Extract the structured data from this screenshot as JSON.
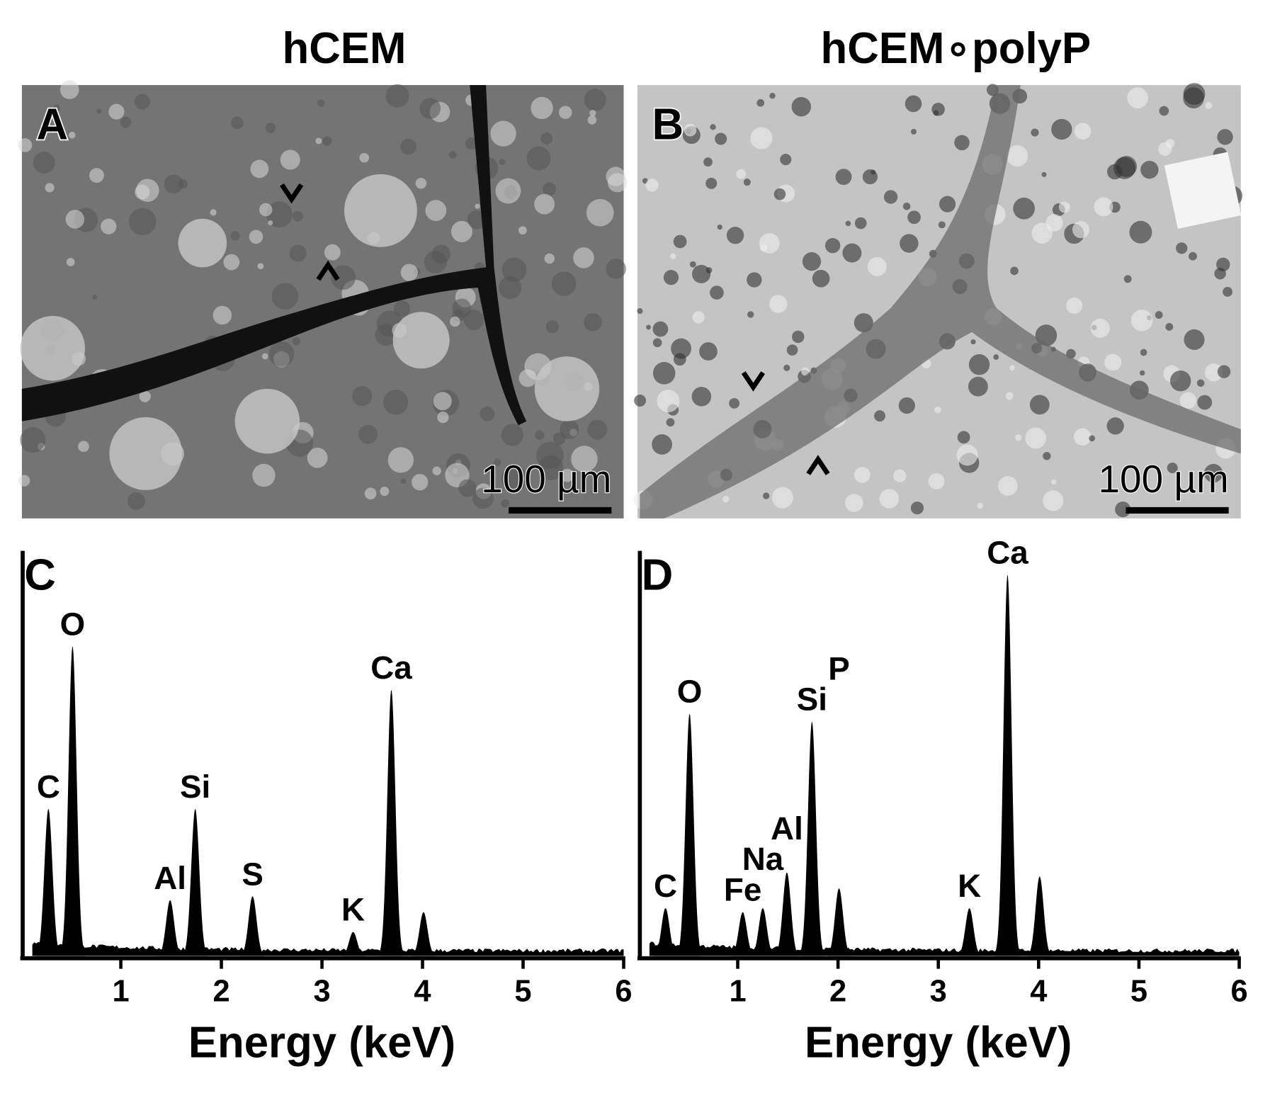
{
  "titles": [
    "hCEM",
    "hCEM∘polyP"
  ],
  "images": [
    {
      "label": "A",
      "scale_bar": "100 µm"
    },
    {
      "label": "B",
      "scale_bar": "100 µm"
    }
  ],
  "chart_data": [
    {
      "type": "spectrum",
      "panel_label": "C",
      "x_label": "Energy (keV)",
      "xlim": [
        0,
        6
      ],
      "xticks": [
        1,
        2,
        3,
        4,
        5,
        6
      ],
      "ylim": [
        0,
        100
      ],
      "color": "#000000",
      "x": [
        0.28,
        0.52,
        1.49,
        1.74,
        2.31,
        3.31,
        3.69,
        4.01
      ],
      "values": [
        37,
        78,
        14,
        37,
        15,
        6,
        67,
        11
      ],
      "labels": [
        "C",
        "O",
        "Al",
        "Si",
        "S",
        "K",
        "Ca",
        null
      ]
    },
    {
      "type": "spectrum",
      "panel_label": "D",
      "x_label": "Energy (keV)",
      "xlim": [
        0,
        6
      ],
      "xticks": [
        1,
        2,
        3,
        4,
        5,
        6
      ],
      "ylim": [
        0,
        100
      ],
      "color": "#000000",
      "x": [
        0.28,
        0.52,
        1.05,
        1.25,
        1.49,
        1.74,
        2.01,
        3.31,
        3.69,
        4.01
      ],
      "values": [
        12,
        61,
        11,
        12,
        21,
        59,
        17,
        12,
        96,
        20
      ],
      "labels": [
        "C",
        "O",
        "Fe",
        "Na",
        "Al",
        "Si",
        "P",
        "K",
        "Ca",
        null
      ]
    }
  ]
}
